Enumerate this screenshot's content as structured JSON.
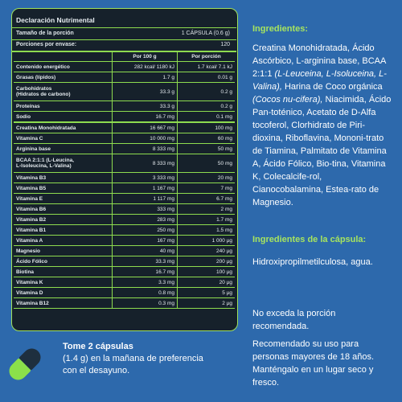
{
  "nutrition": {
    "title": "Declaración Nutrimental",
    "serving_label": "Tamaño de la porción",
    "serving_value": "1 CÁPSULA (0.6 g)",
    "servings_label": "Porciones por envase:",
    "servings_value": "120",
    "col_per100": "Por 100 g",
    "col_portion": "Por porción",
    "energy": {
      "name": "Contenido energético",
      "per100": "282 kcal/ 1180 kJ",
      "portion": "1.7 kcal/ 7.1 kJ"
    },
    "rows_a": [
      {
        "name": "Grasas (lípidos)",
        "per100": "1.7 g",
        "portion": "0.01 g"
      },
      {
        "name": "Carbohidratos\n(Hidratos de carbono)",
        "per100": "33.3 g",
        "portion": "0.2 g"
      },
      {
        "name": "Proteínas",
        "per100": "33.3 g",
        "portion": "0.2 g"
      },
      {
        "name": "Sodio",
        "per100": "16.7 mg",
        "portion": "0.1 mg"
      }
    ],
    "rows_b": [
      {
        "name": "Creatina Monohidratada",
        "per100": "16 667 mg",
        "portion": "100 mg"
      },
      {
        "name": "Vitamina C",
        "per100": "10 000 mg",
        "portion": "60 mg"
      },
      {
        "name": "Arginina base",
        "per100": "8 333 mg",
        "portion": "50 mg"
      },
      {
        "name": "BCAA 2:1:1 (L-Leucina,\nL-Isoleucina, L-Valina)",
        "per100": "8 333 mg",
        "portion": "50 mg"
      },
      {
        "name": "Vitamina B3",
        "per100": "3 333 mg",
        "portion": "20 mg"
      },
      {
        "name": "Vitamina B5",
        "per100": "1 167 mg",
        "portion": "7 mg"
      },
      {
        "name": "Vitamina E",
        "per100": "1 117 mg",
        "portion": "6.7 mg"
      },
      {
        "name": "Vitamina B6",
        "per100": "333 mg",
        "portion": "2 mg"
      },
      {
        "name": "Vitamina B2",
        "per100": "283 mg",
        "portion": "1.7 mg"
      },
      {
        "name": "Vitamina B1",
        "per100": "250 mg",
        "portion": "1.5 mg"
      },
      {
        "name": "Vitamina A",
        "per100": "167 mg",
        "portion": "1 000 µg"
      },
      {
        "name": "Magnesio",
        "per100": "40 mg",
        "portion": "240 µg"
      },
      {
        "name": "Ácido Fólico",
        "per100": "33.3 mg",
        "portion": "200 µg"
      },
      {
        "name": "Biotina",
        "per100": "16.7 mg",
        "portion": "100 µg"
      },
      {
        "name": "Vitamina K",
        "per100": "3.3 mg",
        "portion": "20 µg"
      },
      {
        "name": "Vitamina D",
        "per100": "0.8 mg",
        "portion": "5 µg"
      },
      {
        "name": "Vitamina B12",
        "per100": "0.3 mg",
        "portion": "2 µg"
      }
    ]
  },
  "ingredients": {
    "heading": "Ingredientes:",
    "p1": "Creatina Monohidratada, Ácido Ascórbico, L-arginina base, BCAA 2:1:1 ",
    "p1_italic": "(L-Leuceina, L-Isoluceina, L-Valina),",
    "p2": " Harina de Coco orgánica ",
    "p2_italic": "(Cocos nu-cifera),",
    "p3": " Niacimida, Ácido Pan-toténico, Acetato de D-Alfa tocoferol, Clorhidrato de Piri-dioxina, Riboflavina, Mononi-trato de Tiamina, Palmitato de Vitamina A, Ácido Fólico, Bio-tina, Vitamina K, Colecalcife-rol, Cianocobalamina, Estea-rato de Magnesio."
  },
  "capsule_ingredients": {
    "heading": "Ingredientes de la cápsula:",
    "text": "Hidroxipropilmetilculosa, agua."
  },
  "warning": "No exceda la porción recomendada.",
  "recommendation": "Recomendado su uso para personas mayores de 18 años. Manténgalo en un lugar seco y fresco.",
  "dosage": {
    "bold": "Tome 2 cápsulas",
    "text": "(1.4 g) en la mañana de preferencia con el desayuno."
  },
  "colors": {
    "background": "#2d69ac",
    "panel": "#16212b",
    "accent": "#8edc4f"
  },
  "icons": {
    "capsule": "capsule-icon"
  }
}
